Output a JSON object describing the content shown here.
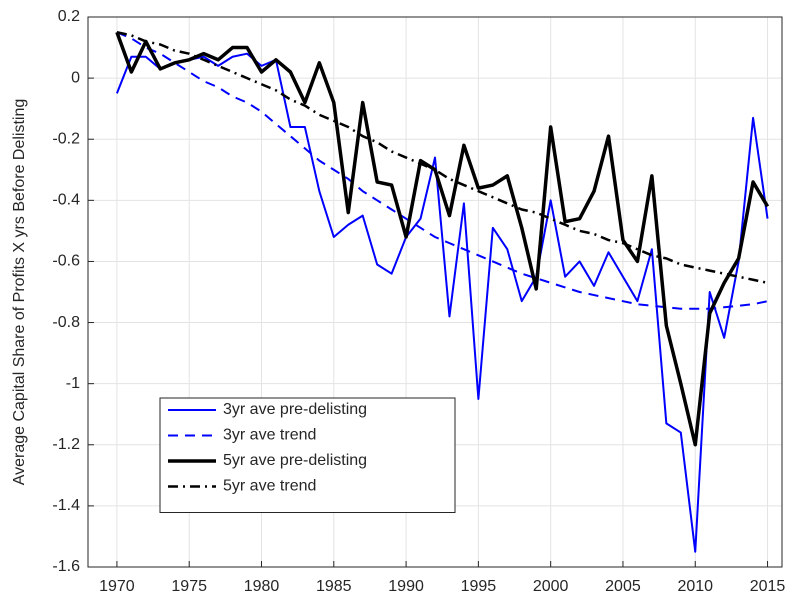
{
  "chart_data": {
    "type": "line",
    "ylabel": "Average Capital Share of Profits X yrs Before Delisting",
    "x": [
      1970,
      1971,
      1972,
      1973,
      1974,
      1975,
      1976,
      1977,
      1978,
      1979,
      1980,
      1981,
      1982,
      1983,
      1984,
      1985,
      1986,
      1987,
      1988,
      1989,
      1990,
      1991,
      1992,
      1993,
      1994,
      1995,
      1996,
      1997,
      1998,
      1999,
      2000,
      2001,
      2002,
      2003,
      2004,
      2005,
      2006,
      2007,
      2008,
      2009,
      2010,
      2011,
      2012,
      2013,
      2014,
      2015
    ],
    "xlim": [
      1968,
      2016
    ],
    "xticks": [
      1970,
      1975,
      1980,
      1985,
      1990,
      1995,
      2000,
      2005,
      2010,
      2015
    ],
    "ylim": [
      -1.6,
      0.2
    ],
    "yticks": [
      0.2,
      0,
      -0.2,
      -0.4,
      -0.6,
      -0.8,
      -1,
      -1.2,
      -1.4,
      -1.6
    ],
    "grid": true,
    "legend": "lower left",
    "series": [
      {
        "name": "3yr ave pre-delisting",
        "color": "#0000ff",
        "style": "solid",
        "width": 2,
        "values": [
          -0.05,
          0.07,
          0.07,
          0.03,
          0.05,
          0.06,
          0.07,
          0.04,
          0.07,
          0.08,
          0.04,
          0.06,
          -0.16,
          -0.16,
          -0.37,
          -0.52,
          -0.48,
          -0.45,
          -0.61,
          -0.64,
          -0.52,
          -0.46,
          -0.26,
          -0.78,
          -0.41,
          -1.05,
          -0.49,
          -0.56,
          -0.73,
          -0.65,
          -0.4,
          -0.65,
          -0.6,
          -0.68,
          -0.57,
          -0.65,
          -0.73,
          -0.56,
          -1.13,
          -1.16,
          -1.55,
          -0.7,
          -0.85,
          -0.6,
          -0.13,
          -0.46
        ]
      },
      {
        "name": "3yr ave trend",
        "color": "#0000ff",
        "style": "dashed",
        "width": 2,
        "values": [
          0.15,
          0.13,
          0.1,
          0.08,
          0.05,
          0.02,
          -0.01,
          -0.03,
          -0.06,
          -0.08,
          -0.11,
          -0.15,
          -0.19,
          -0.23,
          -0.27,
          -0.3,
          -0.33,
          -0.37,
          -0.4,
          -0.43,
          -0.46,
          -0.49,
          -0.52,
          -0.54,
          -0.56,
          -0.58,
          -0.6,
          -0.62,
          -0.64,
          -0.655,
          -0.67,
          -0.685,
          -0.7,
          -0.71,
          -0.72,
          -0.73,
          -0.74,
          -0.745,
          -0.75,
          -0.755,
          -0.755,
          -0.755,
          -0.75,
          -0.745,
          -0.74,
          -0.73
        ]
      },
      {
        "name": "5yr ave pre-delisting",
        "color": "#000000",
        "style": "solid",
        "width": 3.5,
        "values": [
          0.15,
          0.02,
          0.12,
          0.03,
          0.05,
          0.06,
          0.08,
          0.06,
          0.1,
          0.1,
          0.02,
          0.06,
          0.02,
          -0.08,
          0.05,
          -0.08,
          -0.44,
          -0.08,
          -0.34,
          -0.35,
          -0.52,
          -0.27,
          -0.3,
          -0.45,
          -0.22,
          -0.36,
          -0.35,
          -0.32,
          -0.49,
          -0.69,
          -0.16,
          -0.47,
          -0.46,
          -0.37,
          -0.19,
          -0.53,
          -0.6,
          -0.32,
          -0.81,
          -1,
          -1.2,
          -0.77,
          -0.67,
          -0.59,
          -0.34,
          -0.42
        ]
      },
      {
        "name": "5yr ave trend",
        "color": "#000000",
        "style": "dashdot",
        "width": 2.5,
        "values": [
          0.15,
          0.14,
          0.12,
          0.11,
          0.09,
          0.08,
          0.06,
          0.04,
          0.02,
          0,
          -0.02,
          -0.04,
          -0.07,
          -0.09,
          -0.12,
          -0.14,
          -0.16,
          -0.19,
          -0.21,
          -0.24,
          -0.26,
          -0.28,
          -0.3,
          -0.33,
          -0.35,
          -0.37,
          -0.39,
          -0.41,
          -0.43,
          -0.44,
          -0.46,
          -0.48,
          -0.5,
          -0.51,
          -0.53,
          -0.54,
          -0.56,
          -0.58,
          -0.59,
          -0.61,
          -0.62,
          -0.63,
          -0.64,
          -0.65,
          -0.66,
          -0.67
        ]
      }
    ]
  }
}
